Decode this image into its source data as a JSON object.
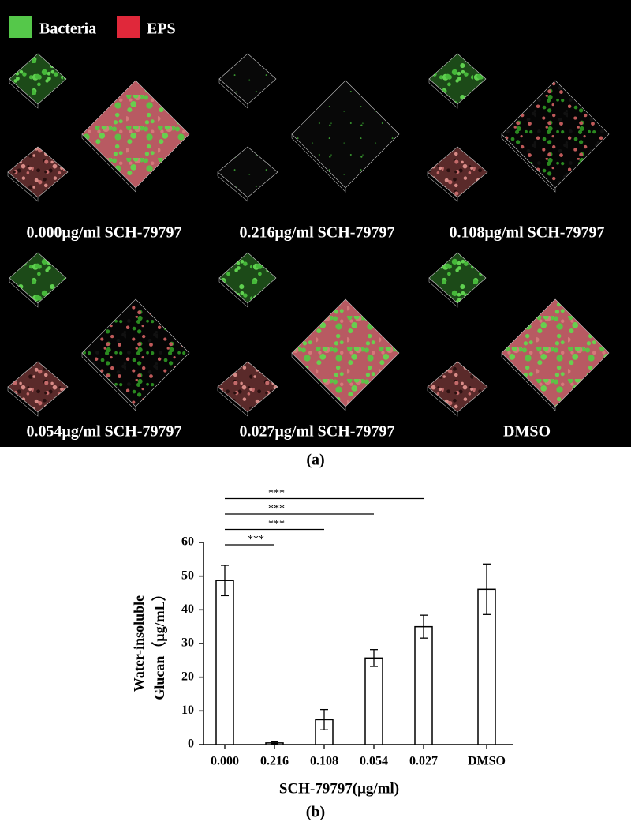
{
  "panel_a": {
    "legend": [
      "Bacteria",
      "EPS"
    ],
    "captions": [
      "0.000μg/ml SCH-79797",
      "0.216μg/ml SCH-79797",
      "0.108μg/ml SCH-79797",
      "0.054μg/ml SCH-79797",
      "0.027μg/ml SCH-79797",
      "DMSO"
    ],
    "label": "(a)"
  },
  "chart_data": {
    "type": "bar",
    "categories": [
      "0.000",
      "0.216",
      "0.108",
      "0.054",
      "0.027",
      "DMSO"
    ],
    "values": [
      48.7,
      0.5,
      7.4,
      25.7,
      35.0,
      46.1
    ],
    "errors": [
      4.5,
      0.3,
      3.0,
      2.5,
      3.4,
      7.5
    ],
    "color": "#ffffff",
    "ylim": [
      0,
      60
    ],
    "yticks": [
      0,
      10,
      20,
      30,
      40,
      50,
      60
    ],
    "xlabel": "SCH-79797(μg/ml)",
    "ylabel": [
      "Water-insoluble",
      "Glucan（μg/mL）"
    ],
    "significance_labels": [
      "***",
      "***",
      "***",
      "***"
    ],
    "label": "(b)"
  }
}
